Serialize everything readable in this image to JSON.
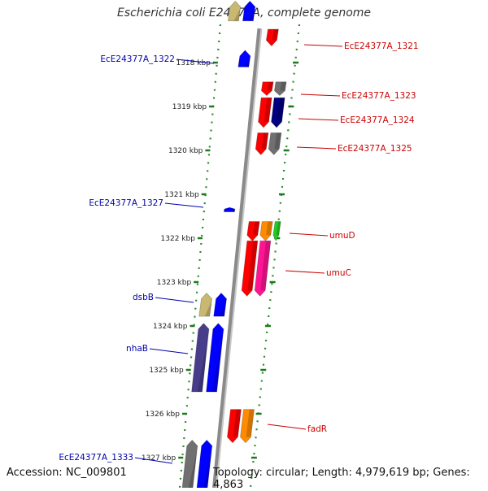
{
  "header": {
    "title": "Escherichia coli E24377A, complete genome"
  },
  "footer": {
    "accession": "Accession: NC_009801",
    "topology": "Topology: circular; Length: 4,979,619 bp; Genes: 4,863"
  },
  "colors": {
    "backbone": "#8a8a8a",
    "tick": "#1e7a1e",
    "ruler_dots": "#2a8a2a",
    "label_red": "#cc0000",
    "label_blue": "#0000aa"
  },
  "axis": {
    "unit": "kbp",
    "ticks": [
      {
        "kbp": 1318,
        "label": "1318 kbp"
      },
      {
        "kbp": 1319,
        "label": "1319 kbp"
      },
      {
        "kbp": 1320,
        "label": "1320 kbp"
      },
      {
        "kbp": 1321,
        "label": "1321 kbp"
      },
      {
        "kbp": 1322,
        "label": "1322 kbp"
      },
      {
        "kbp": 1323,
        "label": "1323 kbp"
      },
      {
        "kbp": 1324,
        "label": "1324 kbp"
      },
      {
        "kbp": 1325,
        "label": "1325 kbp"
      },
      {
        "kbp": 1326,
        "label": "1326 kbp"
      },
      {
        "kbp": 1327,
        "label": "1327 kbp"
      }
    ]
  },
  "genes": [
    {
      "name": "EcE24377A_1321",
      "strand": "+",
      "color": "#ff0000",
      "start": 1317.24,
      "end": 1317.62,
      "lane": 1
    },
    {
      "name": "EcE24377A_1322",
      "strand": "-",
      "color": "#0000ff",
      "start": 1317.72,
      "end": 1318.1,
      "lane": 1
    },
    {
      "name": "EcE24377A_1323",
      "strand": "+",
      "color": "#ff0000",
      "start": 1318.44,
      "end": 1318.75,
      "lane": 1
    },
    {
      "name": "",
      "strand": "+",
      "color": "#707070",
      "start": 1318.44,
      "end": 1318.75,
      "lane": 2
    },
    {
      "name": "EcE24377A_1324",
      "strand": "+",
      "color": "#ff0000",
      "start": 1318.8,
      "end": 1319.48,
      "lane": 1
    },
    {
      "name": "",
      "strand": "+",
      "color": "#000080",
      "start": 1318.8,
      "end": 1319.48,
      "lane": 2
    },
    {
      "name": "EcE24377A_1325",
      "strand": "+",
      "color": "#ff0000",
      "start": 1319.6,
      "end": 1320.1,
      "lane": 1
    },
    {
      "name": "",
      "strand": "+",
      "color": "#707070",
      "start": 1319.6,
      "end": 1320.1,
      "lane": 2
    },
    {
      "name": "EcE24377A_1327",
      "strand": "-",
      "color": "#0000ff",
      "start": 1321.3,
      "end": 1321.4,
      "lane": 1
    },
    {
      "name": "umuD",
      "strand": "+",
      "color": "#ff0000",
      "start": 1321.62,
      "end": 1322.06,
      "lane": 1
    },
    {
      "name": "",
      "strand": "+",
      "color": "#ff8c00",
      "start": 1321.62,
      "end": 1322.06,
      "lane": 2
    },
    {
      "name": "",
      "strand": "+",
      "color": "#22cc22",
      "start": 1321.62,
      "end": 1322.06,
      "lane": 3
    },
    {
      "name": "umuC",
      "strand": "+",
      "color": "#ff0000",
      "start": 1322.06,
      "end": 1323.32,
      "lane": 1
    },
    {
      "name": "",
      "strand": "+",
      "color": "#ff1493",
      "start": 1322.06,
      "end": 1323.32,
      "lane": 2
    },
    {
      "name": "dsbB",
      "strand": "-",
      "color": "#c8b870",
      "start": 1323.25,
      "end": 1323.78,
      "lane": 2
    },
    {
      "name": "",
      "strand": "-",
      "color": "#0000ff",
      "start": 1323.25,
      "end": 1323.78,
      "lane": 1
    },
    {
      "name": "nhaB",
      "strand": "-",
      "color": "#483d8b",
      "start": 1323.94,
      "end": 1325.5,
      "lane": 2
    },
    {
      "name": "",
      "strand": "-",
      "color": "#0000ff",
      "start": 1323.94,
      "end": 1325.5,
      "lane": 1
    },
    {
      "name": "fadR",
      "strand": "+",
      "color": "#ff0000",
      "start": 1325.9,
      "end": 1326.66,
      "lane": 1
    },
    {
      "name": "",
      "strand": "+",
      "color": "#ff8c00",
      "start": 1325.9,
      "end": 1326.66,
      "lane": 2
    },
    {
      "name": "EcE24377A_1333",
      "strand": "-",
      "color": "#707070",
      "start": 1326.6,
      "end": 1328.2,
      "lane": 2
    },
    {
      "name": "",
      "strand": "-",
      "color": "#0000ff",
      "start": 1326.6,
      "end": 1328.2,
      "lane": 1
    },
    {
      "name": "",
      "strand": "-",
      "color": "#c8b870",
      "start": 1316.6,
      "end": 1317.05,
      "lane": 2
    },
    {
      "name": "",
      "strand": "-",
      "color": "#0000ff",
      "start": 1316.6,
      "end": 1317.05,
      "lane": 1
    }
  ]
}
